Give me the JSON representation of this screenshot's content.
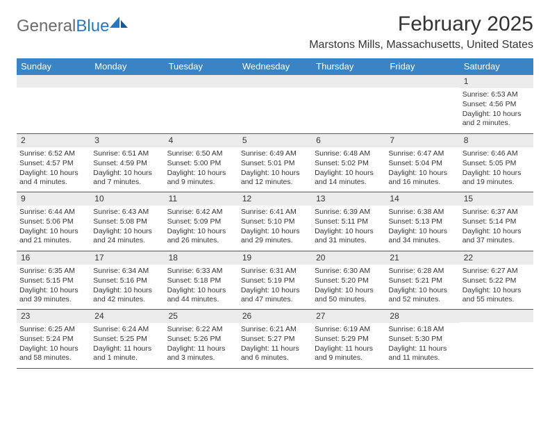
{
  "logo": {
    "text_gray": "General",
    "text_blue": "Blue"
  },
  "title": "February 2025",
  "location": "Marstons Mills, Massachusetts, United States",
  "colors": {
    "header_blue": "#3a84c6",
    "daynum_bg": "#ebebeb",
    "rule": "#555555",
    "text": "#333333",
    "logo_gray": "#6b6b6b",
    "logo_blue": "#2679c0"
  },
  "days_of_week": [
    "Sunday",
    "Monday",
    "Tuesday",
    "Wednesday",
    "Thursday",
    "Friday",
    "Saturday"
  ],
  "weeks": [
    [
      {
        "num": "",
        "sunrise": "",
        "sunset": "",
        "daylight": ""
      },
      {
        "num": "",
        "sunrise": "",
        "sunset": "",
        "daylight": ""
      },
      {
        "num": "",
        "sunrise": "",
        "sunset": "",
        "daylight": ""
      },
      {
        "num": "",
        "sunrise": "",
        "sunset": "",
        "daylight": ""
      },
      {
        "num": "",
        "sunrise": "",
        "sunset": "",
        "daylight": ""
      },
      {
        "num": "",
        "sunrise": "",
        "sunset": "",
        "daylight": ""
      },
      {
        "num": "1",
        "sunrise": "Sunrise: 6:53 AM",
        "sunset": "Sunset: 4:56 PM",
        "daylight": "Daylight: 10 hours and 2 minutes."
      }
    ],
    [
      {
        "num": "2",
        "sunrise": "Sunrise: 6:52 AM",
        "sunset": "Sunset: 4:57 PM",
        "daylight": "Daylight: 10 hours and 4 minutes."
      },
      {
        "num": "3",
        "sunrise": "Sunrise: 6:51 AM",
        "sunset": "Sunset: 4:59 PM",
        "daylight": "Daylight: 10 hours and 7 minutes."
      },
      {
        "num": "4",
        "sunrise": "Sunrise: 6:50 AM",
        "sunset": "Sunset: 5:00 PM",
        "daylight": "Daylight: 10 hours and 9 minutes."
      },
      {
        "num": "5",
        "sunrise": "Sunrise: 6:49 AM",
        "sunset": "Sunset: 5:01 PM",
        "daylight": "Daylight: 10 hours and 12 minutes."
      },
      {
        "num": "6",
        "sunrise": "Sunrise: 6:48 AM",
        "sunset": "Sunset: 5:02 PM",
        "daylight": "Daylight: 10 hours and 14 minutes."
      },
      {
        "num": "7",
        "sunrise": "Sunrise: 6:47 AM",
        "sunset": "Sunset: 5:04 PM",
        "daylight": "Daylight: 10 hours and 16 minutes."
      },
      {
        "num": "8",
        "sunrise": "Sunrise: 6:46 AM",
        "sunset": "Sunset: 5:05 PM",
        "daylight": "Daylight: 10 hours and 19 minutes."
      }
    ],
    [
      {
        "num": "9",
        "sunrise": "Sunrise: 6:44 AM",
        "sunset": "Sunset: 5:06 PM",
        "daylight": "Daylight: 10 hours and 21 minutes."
      },
      {
        "num": "10",
        "sunrise": "Sunrise: 6:43 AM",
        "sunset": "Sunset: 5:08 PM",
        "daylight": "Daylight: 10 hours and 24 minutes."
      },
      {
        "num": "11",
        "sunrise": "Sunrise: 6:42 AM",
        "sunset": "Sunset: 5:09 PM",
        "daylight": "Daylight: 10 hours and 26 minutes."
      },
      {
        "num": "12",
        "sunrise": "Sunrise: 6:41 AM",
        "sunset": "Sunset: 5:10 PM",
        "daylight": "Daylight: 10 hours and 29 minutes."
      },
      {
        "num": "13",
        "sunrise": "Sunrise: 6:39 AM",
        "sunset": "Sunset: 5:11 PM",
        "daylight": "Daylight: 10 hours and 31 minutes."
      },
      {
        "num": "14",
        "sunrise": "Sunrise: 6:38 AM",
        "sunset": "Sunset: 5:13 PM",
        "daylight": "Daylight: 10 hours and 34 minutes."
      },
      {
        "num": "15",
        "sunrise": "Sunrise: 6:37 AM",
        "sunset": "Sunset: 5:14 PM",
        "daylight": "Daylight: 10 hours and 37 minutes."
      }
    ],
    [
      {
        "num": "16",
        "sunrise": "Sunrise: 6:35 AM",
        "sunset": "Sunset: 5:15 PM",
        "daylight": "Daylight: 10 hours and 39 minutes."
      },
      {
        "num": "17",
        "sunrise": "Sunrise: 6:34 AM",
        "sunset": "Sunset: 5:16 PM",
        "daylight": "Daylight: 10 hours and 42 minutes."
      },
      {
        "num": "18",
        "sunrise": "Sunrise: 6:33 AM",
        "sunset": "Sunset: 5:18 PM",
        "daylight": "Daylight: 10 hours and 44 minutes."
      },
      {
        "num": "19",
        "sunrise": "Sunrise: 6:31 AM",
        "sunset": "Sunset: 5:19 PM",
        "daylight": "Daylight: 10 hours and 47 minutes."
      },
      {
        "num": "20",
        "sunrise": "Sunrise: 6:30 AM",
        "sunset": "Sunset: 5:20 PM",
        "daylight": "Daylight: 10 hours and 50 minutes."
      },
      {
        "num": "21",
        "sunrise": "Sunrise: 6:28 AM",
        "sunset": "Sunset: 5:21 PM",
        "daylight": "Daylight: 10 hours and 52 minutes."
      },
      {
        "num": "22",
        "sunrise": "Sunrise: 6:27 AM",
        "sunset": "Sunset: 5:22 PM",
        "daylight": "Daylight: 10 hours and 55 minutes."
      }
    ],
    [
      {
        "num": "23",
        "sunrise": "Sunrise: 6:25 AM",
        "sunset": "Sunset: 5:24 PM",
        "daylight": "Daylight: 10 hours and 58 minutes."
      },
      {
        "num": "24",
        "sunrise": "Sunrise: 6:24 AM",
        "sunset": "Sunset: 5:25 PM",
        "daylight": "Daylight: 11 hours and 1 minute."
      },
      {
        "num": "25",
        "sunrise": "Sunrise: 6:22 AM",
        "sunset": "Sunset: 5:26 PM",
        "daylight": "Daylight: 11 hours and 3 minutes."
      },
      {
        "num": "26",
        "sunrise": "Sunrise: 6:21 AM",
        "sunset": "Sunset: 5:27 PM",
        "daylight": "Daylight: 11 hours and 6 minutes."
      },
      {
        "num": "27",
        "sunrise": "Sunrise: 6:19 AM",
        "sunset": "Sunset: 5:29 PM",
        "daylight": "Daylight: 11 hours and 9 minutes."
      },
      {
        "num": "28",
        "sunrise": "Sunrise: 6:18 AM",
        "sunset": "Sunset: 5:30 PM",
        "daylight": "Daylight: 11 hours and 11 minutes."
      },
      {
        "num": "",
        "sunrise": "",
        "sunset": "",
        "daylight": ""
      }
    ]
  ]
}
